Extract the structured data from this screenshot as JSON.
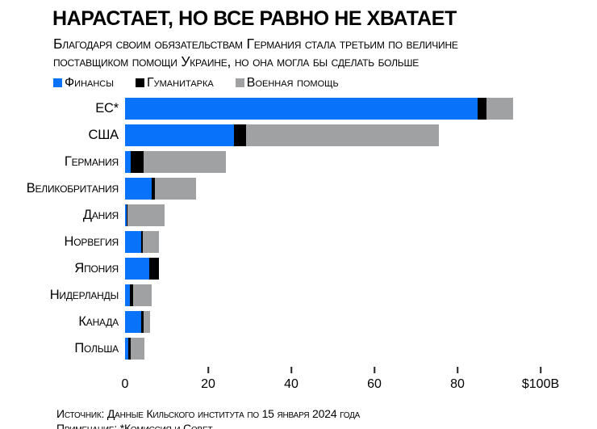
{
  "header": {
    "title": "НАРАСТАЕТ, НО ВСЕ РАВНО НЕ ХВАТАЕТ",
    "subtitle": "Благодаря своим обязательствам Германия стала третьим по величине поставщиком помощи Украине, но она могла бы сделать больше"
  },
  "colors": {
    "finance_blue": "#0873fa",
    "humanitarian_black": "#000000",
    "military_gray": "#a0a1a3"
  },
  "chart_data": {
    "type": "bar",
    "orientation": "horizontal",
    "stacked": true,
    "title": "НАРАСТАЕТ, НО ВСЕ РАВНО НЕ ХВАТАЕТ",
    "unit": "billions USD",
    "grid": false,
    "legend_position": "top",
    "categories": [
      "ЕС*",
      "США",
      "Германия",
      "Великобритания",
      "Дания",
      "Норвегия",
      "Япония",
      "Нидерланды",
      "Канада",
      "Польша"
    ],
    "series": [
      {
        "name": "Финансы",
        "color": "#0873fa",
        "values": [
          84.8,
          26.2,
          1.4,
          6.4,
          0.3,
          3.9,
          5.8,
          1.1,
          3.9,
          0.7
        ]
      },
      {
        "name": "Гуманитарка",
        "color": "#000000",
        "values": [
          2.1,
          2.9,
          3.1,
          0.7,
          0.3,
          0.4,
          2.4,
          0.9,
          0.5,
          0.6
        ]
      },
      {
        "name": "Военная помощь",
        "color": "#a0a1a3",
        "values": [
          6.5,
          46.4,
          19.8,
          10.0,
          8.9,
          3.8,
          0,
          4.4,
          1.7,
          3.3
        ]
      }
    ],
    "xlim": [
      0,
      100
    ],
    "x_ticks": [
      {
        "label": "0",
        "value": 0
      },
      {
        "label": "20",
        "value": 20
      },
      {
        "label": "40",
        "value": 40
      },
      {
        "label": "60",
        "value": 60
      },
      {
        "label": "80",
        "value": 80
      },
      {
        "label": "$100B",
        "value": 100
      }
    ]
  },
  "footer": {
    "source": "Источник: Данные Кильского института по 15 января 2024 года",
    "note": "Примечание: *Комиссия и Совет"
  }
}
